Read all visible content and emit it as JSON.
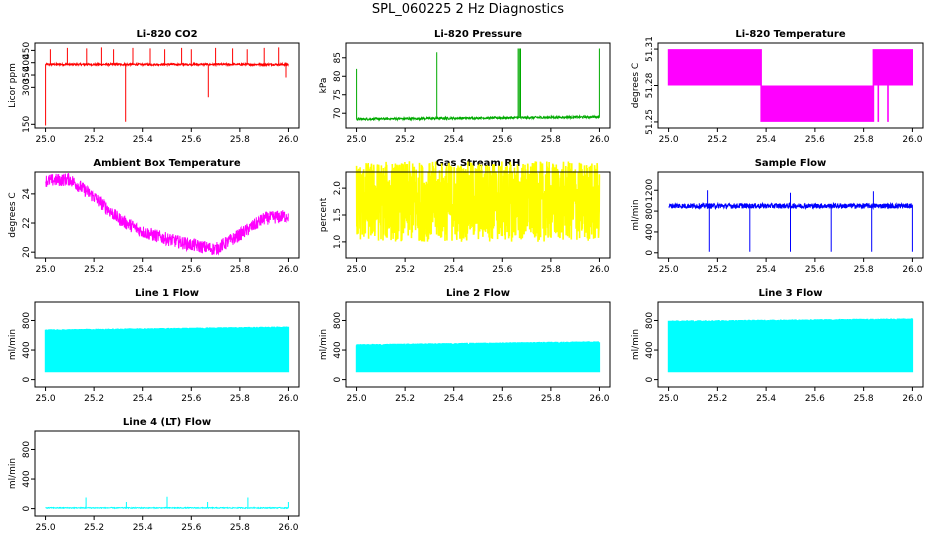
{
  "title": "SPL_060225  2 Hz Diagnostics",
  "chart_data": [
    {
      "type": "line",
      "title": "Li-820 CO2",
      "ylabel": "Licor ppm",
      "color": "#ff0000",
      "xlim": [
        25.0,
        26.0
      ],
      "ylim": [
        135,
        480
      ],
      "xticks": [
        "25.0",
        "25.2",
        "25.4",
        "25.6",
        "25.8",
        "26.0"
      ],
      "yticks": [
        {
          "v": 150,
          "label": "150"
        },
        {
          "v": 300,
          "label": "300"
        },
        {
          "v": 350,
          "label": "350"
        },
        {
          "v": 400,
          "label": "400"
        },
        {
          "v": 450,
          "label": "450"
        }
      ],
      "gen": {
        "kind": "spiky",
        "base": 393,
        "noise": 4,
        "step": 0.0012,
        "spikes": [
          {
            "x": 25.0,
            "y": 145
          },
          {
            "x": 25.02,
            "y": 455
          },
          {
            "x": 25.09,
            "y": 460
          },
          {
            "x": 25.17,
            "y": 458
          },
          {
            "x": 25.23,
            "y": 462
          },
          {
            "x": 25.28,
            "y": 455
          },
          {
            "x": 25.33,
            "y": 160
          },
          {
            "x": 25.36,
            "y": 460
          },
          {
            "x": 25.43,
            "y": 458
          },
          {
            "x": 25.49,
            "y": 455
          },
          {
            "x": 25.56,
            "y": 460
          },
          {
            "x": 25.6,
            "y": 455
          },
          {
            "x": 25.67,
            "y": 260
          },
          {
            "x": 25.7,
            "y": 460
          },
          {
            "x": 25.77,
            "y": 458
          },
          {
            "x": 25.83,
            "y": 455
          },
          {
            "x": 25.9,
            "y": 460
          },
          {
            "x": 25.96,
            "y": 462
          },
          {
            "x": 25.99,
            "y": 340
          }
        ]
      }
    },
    {
      "type": "line",
      "title": "Li-820 Pressure",
      "ylabel": "kPa",
      "color": "#00aa00",
      "xlim": [
        25.0,
        26.0
      ],
      "ylim": [
        66,
        89
      ],
      "xticks": [
        "25.0",
        "25.2",
        "25.4",
        "25.6",
        "25.8",
        "26.0"
      ],
      "yticks": [
        {
          "v": 70,
          "label": "70"
        },
        {
          "v": 75,
          "label": "75"
        },
        {
          "v": 80,
          "label": "80"
        },
        {
          "v": 85,
          "label": "85"
        }
      ],
      "gen": {
        "kind": "spiky",
        "base": 68.4,
        "noise": 0.3,
        "step": 0.0012,
        "drift": 0.6,
        "spikes": [
          {
            "x": 25.0,
            "y": 82
          },
          {
            "x": 25.33,
            "y": 86.5
          },
          {
            "x": 25.665,
            "y": 87.5
          },
          {
            "x": 25.67,
            "y": 87.5
          },
          {
            "x": 25.675,
            "y": 87.5
          },
          {
            "x": 26.0,
            "y": 87.5
          }
        ]
      }
    },
    {
      "type": "line",
      "title": "Li-820 Temperature",
      "ylabel": "degrees C",
      "color": "#ff00ff",
      "xlim": [
        25.0,
        26.0
      ],
      "ylim": [
        51.245,
        51.315
      ],
      "xticks": [
        "25.0",
        "25.2",
        "25.4",
        "25.6",
        "25.8",
        "26.0"
      ],
      "yticks": [
        {
          "v": 51.25,
          "label": "51.25"
        },
        {
          "v": 51.28,
          "label": "51.28"
        },
        {
          "v": 51.31,
          "label": "51.31"
        }
      ],
      "gen": {
        "kind": "bands",
        "segments": [
          {
            "x0": 25.0,
            "x1": 25.38,
            "lo": 51.28,
            "hi": 51.31
          },
          {
            "x0": 25.38,
            "x1": 25.84,
            "lo": 51.25,
            "hi": 51.28
          },
          {
            "x0": 25.84,
            "x1": 26.0,
            "lo": 51.28,
            "hi": 51.31
          }
        ]
      }
    },
    {
      "type": "line",
      "title": "Ambient Box Temperature",
      "ylabel": "degrees C",
      "color": "#ff00ff",
      "xlim": [
        25.0,
        26.0
      ],
      "ylim": [
        19.6,
        25.5
      ],
      "xticks": [
        "25.0",
        "25.2",
        "25.4",
        "25.6",
        "25.8",
        "26.0"
      ],
      "yticks": [
        {
          "v": 20,
          "label": "20"
        },
        {
          "v": 22,
          "label": "22"
        },
        {
          "v": 24,
          "label": "24"
        }
      ],
      "gen": {
        "kind": "curve",
        "noise": 0.45,
        "step": 0.0012,
        "points": [
          [
            25.0,
            24.9
          ],
          [
            25.1,
            25.0
          ],
          [
            25.2,
            23.8
          ],
          [
            25.3,
            22.3
          ],
          [
            25.4,
            21.4
          ],
          [
            25.5,
            20.9
          ],
          [
            25.6,
            20.5
          ],
          [
            25.7,
            20.2
          ],
          [
            25.8,
            21.2
          ],
          [
            25.9,
            22.3
          ],
          [
            26.0,
            22.5
          ]
        ]
      }
    },
    {
      "type": "line",
      "title": "Gas Stream RH",
      "ylabel": "percent",
      "color": "#ffff00",
      "xlim": [
        25.0,
        26.0
      ],
      "ylim": [
        0.7,
        2.3
      ],
      "xticks": [
        "25.0",
        "25.2",
        "25.4",
        "25.6",
        "25.8",
        "26.0"
      ],
      "yticks": [
        {
          "v": 1.0,
          "label": "1.0"
        },
        {
          "v": 1.5,
          "label": "1.5"
        },
        {
          "v": 2.0,
          "label": "2.0"
        }
      ],
      "gen": {
        "kind": "noisy",
        "base": 1.75,
        "noise": 0.75,
        "step": 0.0008
      }
    },
    {
      "type": "line",
      "title": "Sample Flow",
      "ylabel": "ml/min",
      "color": "#0000ff",
      "xlim": [
        25.0,
        26.0
      ],
      "ylim": [
        -100,
        1550
      ],
      "xticks": [
        "25.0",
        "25.2",
        "25.4",
        "25.6",
        "25.8",
        "26.0"
      ],
      "yticks": [
        {
          "v": 0,
          "label": "0"
        },
        {
          "v": 400,
          "label": "400"
        },
        {
          "v": 800,
          "label": "800"
        },
        {
          "v": 1200,
          "label": "1200"
        }
      ],
      "gen": {
        "kind": "spiky",
        "base": 900,
        "noise": 50,
        "step": 0.001,
        "spikes": [
          {
            "x": 25.167,
            "y": 20
          },
          {
            "x": 25.333,
            "y": 20
          },
          {
            "x": 25.5,
            "y": 20
          },
          {
            "x": 25.667,
            "y": 20
          },
          {
            "x": 25.833,
            "y": 20
          },
          {
            "x": 26.0,
            "y": 20
          },
          {
            "x": 25.16,
            "y": 1200
          },
          {
            "x": 25.5,
            "y": 1150
          },
          {
            "x": 25.84,
            "y": 1180
          }
        ]
      }
    },
    {
      "type": "line",
      "title": "Line 1 Flow",
      "ylabel": "ml/min",
      "color": "#00ffff",
      "xlim": [
        25.0,
        26.0
      ],
      "ylim": [
        -100,
        1050
      ],
      "xticks": [
        "25.0",
        "25.2",
        "25.4",
        "25.6",
        "25.8",
        "26.0"
      ],
      "yticks": [
        {
          "v": 0,
          "label": "0"
        },
        {
          "v": 400,
          "label": "400"
        },
        {
          "v": 800,
          "label": "800"
        }
      ],
      "gen": {
        "kind": "blocks",
        "lo": 100,
        "hi": 670,
        "drift": 40,
        "gaps": [
          25.16,
          25.33,
          25.5,
          25.67,
          25.84
        ]
      }
    },
    {
      "type": "line",
      "title": "Line 2 Flow",
      "ylabel": "ml/min",
      "color": "#00ffff",
      "xlim": [
        25.0,
        26.0
      ],
      "ylim": [
        -100,
        1050
      ],
      "xticks": [
        "25.0",
        "25.2",
        "25.4",
        "25.6",
        "25.8",
        "26.0"
      ],
      "yticks": [
        {
          "v": 0,
          "label": "0"
        },
        {
          "v": 400,
          "label": "400"
        },
        {
          "v": 800,
          "label": "800"
        }
      ],
      "gen": {
        "kind": "blocks",
        "lo": 100,
        "hi": 470,
        "drift": 40,
        "gaps": [
          25.08,
          25.16,
          25.25,
          25.33,
          25.42,
          25.5,
          25.58,
          25.67,
          25.75,
          25.8,
          25.84,
          25.92
        ]
      }
    },
    {
      "type": "line",
      "title": "Line 3 Flow",
      "ylabel": "ml/min",
      "color": "#00ffff",
      "xlim": [
        25.0,
        26.0
      ],
      "ylim": [
        -100,
        1050
      ],
      "xticks": [
        "25.0",
        "25.2",
        "25.4",
        "25.6",
        "25.8",
        "26.0"
      ],
      "yticks": [
        {
          "v": 0,
          "label": "0"
        },
        {
          "v": 400,
          "label": "400"
        },
        {
          "v": 800,
          "label": "800"
        }
      ],
      "gen": {
        "kind": "blocks",
        "lo": 100,
        "hi": 790,
        "drift": 30,
        "gaps": [
          25.1,
          25.2,
          25.25,
          25.33,
          25.45,
          25.5,
          25.58,
          25.67,
          25.75,
          25.8,
          25.84,
          25.92
        ]
      }
    },
    {
      "type": "line",
      "title": "Line 4 (LT) Flow",
      "ylabel": "ml/min",
      "color": "#00ffff",
      "xlim": [
        25.0,
        26.0
      ],
      "ylim": [
        -100,
        1050
      ],
      "xticks": [
        "25.0",
        "25.2",
        "25.4",
        "25.6",
        "25.8",
        "26.0"
      ],
      "yticks": [
        {
          "v": 0,
          "label": "0"
        },
        {
          "v": 400,
          "label": "400"
        },
        {
          "v": 800,
          "label": "800"
        }
      ],
      "gen": {
        "kind": "spiky",
        "base": 10,
        "noise": 6,
        "step": 0.0015,
        "spikes": [
          {
            "x": 25.167,
            "y": 150
          },
          {
            "x": 25.333,
            "y": 90
          },
          {
            "x": 25.5,
            "y": 160
          },
          {
            "x": 25.667,
            "y": 90
          },
          {
            "x": 25.833,
            "y": 150
          },
          {
            "x": 26.0,
            "y": 90
          }
        ]
      }
    }
  ]
}
